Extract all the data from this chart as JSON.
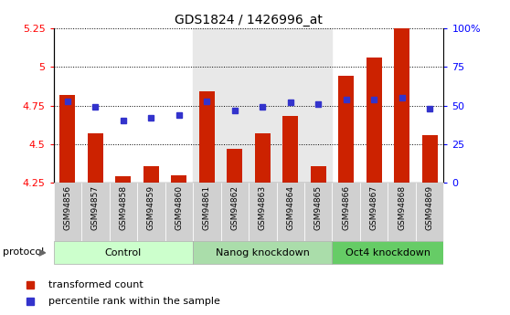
{
  "title": "GDS1824 / 1426996_at",
  "samples": [
    "GSM94856",
    "GSM94857",
    "GSM94858",
    "GSM94859",
    "GSM94860",
    "GSM94861",
    "GSM94862",
    "GSM94863",
    "GSM94864",
    "GSM94865",
    "GSM94866",
    "GSM94867",
    "GSM94868",
    "GSM94869"
  ],
  "bar_values": [
    4.82,
    4.57,
    4.29,
    4.36,
    4.3,
    4.84,
    4.47,
    4.57,
    4.68,
    4.36,
    4.94,
    5.06,
    5.32,
    4.56
  ],
  "dot_values_left": [
    4.78,
    4.74,
    4.65,
    4.67,
    4.69,
    4.78,
    4.72,
    4.74,
    4.77,
    4.76,
    4.79,
    4.79,
    4.8,
    4.73
  ],
  "bar_color": "#cc2200",
  "dot_color": "#3333cc",
  "ylim_left": [
    4.25,
    5.25
  ],
  "ylim_right": [
    0,
    100
  ],
  "yticks_left": [
    4.25,
    4.5,
    4.75,
    5.0,
    5.25
  ],
  "ytick_labels_left": [
    "4.25",
    "4.5",
    "4.75",
    "5",
    "5.25"
  ],
  "yticks_right": [
    0,
    25,
    50,
    75,
    100
  ],
  "ytick_labels_right": [
    "0",
    "25",
    "50",
    "75",
    "100%"
  ],
  "hgrid_values": [
    4.5,
    4.75,
    5.0,
    5.25
  ],
  "groups": [
    {
      "label": "Control",
      "start": 0,
      "end": 4,
      "color": "#ccffcc"
    },
    {
      "label": "Nanog knockdown",
      "start": 5,
      "end": 9,
      "color": "#aaddaa"
    },
    {
      "label": "Oct4 knockdown",
      "start": 10,
      "end": 13,
      "color": "#66cc66"
    }
  ],
  "nanog_bg_color": "#e8e8e8",
  "plot_bg_color": "#ffffff",
  "protocol_label": "protocol",
  "legend_bar": "transformed count",
  "legend_dot": "percentile rank within the sample",
  "bar_bottom": 4.25,
  "bar_width": 0.55
}
